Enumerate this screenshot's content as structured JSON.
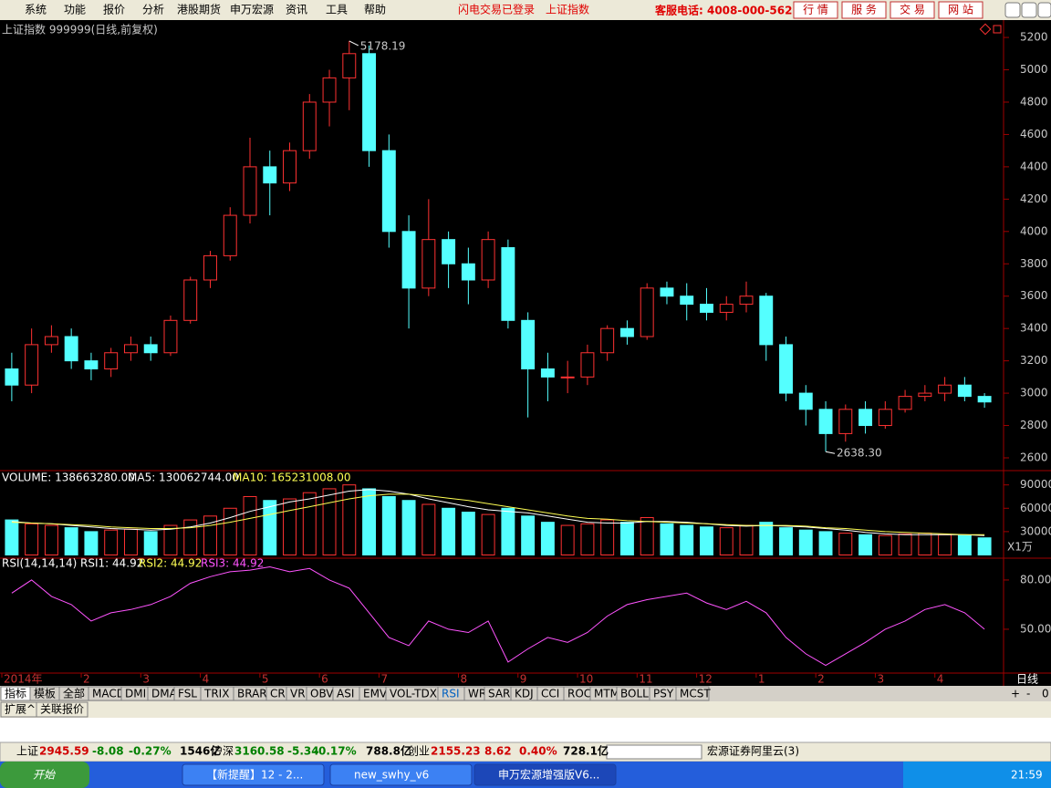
{
  "menu": {
    "items": [
      "系统",
      "功能",
      "报价",
      "分析",
      "港股期货",
      "申万宏源",
      "资讯",
      "工具",
      "帮助"
    ],
    "login_status": "闪电交易已登录",
    "index_name": "上证指数",
    "hotline": "客服电话: 4008-000-562",
    "buttons": [
      "行 情",
      "服 务",
      "交 易",
      "网 站"
    ]
  },
  "chart_data": [
    {
      "type": "candlestick",
      "title": "上证指数 999999(日线,前复权)",
      "high_label": "5178.19",
      "low_label": "2638.30",
      "categories": [
        "2014年",
        null,
        null,
        null,
        "2",
        null,
        null,
        "3",
        null,
        null,
        "4",
        null,
        null,
        "5",
        null,
        null,
        "6",
        null,
        null,
        "7",
        null,
        null,
        null,
        "8",
        null,
        null,
        "9",
        null,
        null,
        "10",
        null,
        null,
        "11",
        null,
        null,
        "12",
        null,
        null,
        "1",
        null,
        null,
        "2",
        null,
        null,
        "3",
        null,
        null,
        "4",
        null,
        null
      ],
      "open": [
        3150,
        3050,
        3300,
        3350,
        3200,
        3150,
        3250,
        3300,
        3250,
        3450,
        3700,
        3850,
        4100,
        4400,
        4300,
        4500,
        4800,
        4950,
        5100,
        4500,
        4000,
        3650,
        3950,
        3800,
        3700,
        3900,
        3450,
        3150,
        3100,
        3100,
        3250,
        3400,
        3350,
        3650,
        3600,
        3550,
        3500,
        3550,
        3600,
        3300,
        3000,
        2900,
        2750,
        2900,
        2800,
        2900,
        2980,
        3000,
        3050,
        2980
      ],
      "high": [
        3250,
        3400,
        3420,
        3400,
        3250,
        3280,
        3350,
        3350,
        3480,
        3720,
        3880,
        4150,
        4580,
        4500,
        4550,
        4850,
        5000,
        5178.19,
        5150,
        4600,
        4100,
        4200,
        4000,
        3900,
        4000,
        3950,
        3500,
        3250,
        3200,
        3300,
        3420,
        3450,
        3680,
        3690,
        3680,
        3650,
        3600,
        3690,
        3620,
        3350,
        3050,
        2950,
        2930,
        2950,
        2950,
        3020,
        3050,
        3100,
        3100,
        3000
      ],
      "low": [
        2950,
        3000,
        3250,
        3150,
        3080,
        3100,
        3200,
        3200,
        3230,
        3430,
        3650,
        3820,
        4050,
        4100,
        4250,
        4450,
        4650,
        4750,
        4400,
        3900,
        3400,
        3600,
        3650,
        3550,
        3650,
        3400,
        2850,
        2950,
        3000,
        3050,
        3200,
        3300,
        3330,
        3550,
        3450,
        3450,
        3450,
        3500,
        3200,
        2950,
        2800,
        2638.3,
        2700,
        2750,
        2780,
        2880,
        2950,
        2950,
        2950,
        2910
      ],
      "close": [
        3050,
        3300,
        3350,
        3200,
        3150,
        3250,
        3300,
        3250,
        3450,
        3700,
        3850,
        4100,
        4400,
        4300,
        4500,
        4800,
        4950,
        5100,
        4500,
        4000,
        3650,
        3950,
        3800,
        3700,
        3950,
        3450,
        3150,
        3100,
        3100,
        3250,
        3400,
        3350,
        3650,
        3600,
        3550,
        3500,
        3550,
        3600,
        3300,
        3000,
        2900,
        2750,
        2900,
        2800,
        2900,
        2980,
        3000,
        3050,
        2980,
        2945.59
      ],
      "up_color": "#ff3232",
      "down_color": "#54ffff",
      "ylim": [
        2521,
        5285
      ],
      "yticks": [
        2600,
        2800,
        3000,
        3200,
        3400,
        3600,
        3800,
        4000,
        4200,
        4400,
        4600,
        4800,
        5000,
        5200
      ],
      "grid": false
    },
    {
      "type": "bar",
      "title": "VOLUME: 138663280.00",
      "unit": "X1万",
      "values": [
        45000,
        40000,
        38000,
        35000,
        30000,
        32000,
        33000,
        30000,
        38000,
        45000,
        50000,
        60000,
        75000,
        70000,
        72000,
        80000,
        85000,
        90000,
        85000,
        75000,
        70000,
        65000,
        60000,
        55000,
        52000,
        60000,
        50000,
        42000,
        38000,
        40000,
        45000,
        42000,
        48000,
        40000,
        38000,
        36000,
        35000,
        38000,
        42000,
        35000,
        32000,
        30000,
        28000,
        26000,
        25000,
        27000,
        28000,
        26000,
        25000,
        22000
      ],
      "series": [
        {
          "name": "MA5: 130062744.00",
          "color": "#ffffff",
          "values": [
            43000,
            41000,
            40000,
            38000,
            36000,
            34000,
            33000,
            32000,
            33000,
            36000,
            41000,
            48000,
            56000,
            62000,
            68000,
            72000,
            77000,
            82000,
            84000,
            82000,
            78000,
            72000,
            67000,
            62000,
            58000,
            56000,
            54000,
            50000,
            46000,
            42000,
            41000,
            41000,
            43000,
            43000,
            42000,
            40000,
            38000,
            37000,
            38000,
            37000,
            36000,
            34000,
            32000,
            29000,
            27000,
            26000,
            26000,
            26000,
            26000,
            25000
          ]
        },
        {
          "name": "MA10: 165231008.00",
          "color": "#ffff54",
          "values": [
            42000,
            41000,
            40000,
            39000,
            38000,
            36000,
            35000,
            34000,
            34000,
            35000,
            38000,
            42000,
            47000,
            52000,
            57000,
            62000,
            67000,
            72000,
            76000,
            78000,
            78000,
            76000,
            73000,
            70000,
            66000,
            62000,
            58000,
            54000,
            50000,
            47000,
            46000,
            44000,
            43000,
            42000,
            41000,
            40000,
            39000,
            38000,
            38000,
            38000,
            37000,
            35000,
            34000,
            32000,
            30000,
            29000,
            28000,
            27000,
            26000,
            26000
          ]
        }
      ],
      "ylim": [
        0,
        106000
      ],
      "yticks": [
        30000,
        60000,
        90000
      ]
    },
    {
      "type": "line",
      "title": "RSI(14,14,14)",
      "series": [
        {
          "name": "RSI1: 44.92",
          "color": "#ffffff"
        },
        {
          "name": "RSI2: 44.92",
          "color": "#ffff54"
        },
        {
          "name": "RSI3: 44.92",
          "color": "#ff54ff",
          "values": [
            72,
            80,
            70,
            65,
            55,
            60,
            62,
            65,
            70,
            78,
            82,
            85,
            86,
            88,
            85,
            87,
            80,
            75,
            60,
            45,
            40,
            55,
            50,
            48,
            55,
            30,
            38,
            45,
            42,
            48,
            58,
            65,
            68,
            70,
            72,
            66,
            62,
            67,
            60,
            45,
            35,
            28,
            35,
            42,
            50,
            55,
            62,
            65,
            60,
            50
          ]
        }
      ],
      "ylim": [
        23.3,
        93.3
      ],
      "yticks": [
        {
          "value": 50,
          "label": "50.00"
        },
        {
          "value": 80,
          "label": "80.00"
        }
      ]
    }
  ],
  "period": "日线",
  "zoom": [
    "+",
    "-",
    "0"
  ],
  "tabs": {
    "row1": [
      "指标",
      "模板",
      "全部",
      "MACD",
      "DMI",
      "DMA",
      "FSL",
      "TRIX",
      "BRAR",
      "CR",
      "VR",
      "OBV",
      "ASI",
      "EMV",
      "VOL-TDX",
      "RSI",
      "WR",
      "SAR",
      "KDJ",
      "CCI",
      "ROC",
      "MTM",
      "BOLL",
      "PSY",
      "MCST"
    ],
    "row2": [
      "扩展^",
      "关联报价"
    ]
  },
  "status": [
    {
      "text": "上证",
      "color": "#000000"
    },
    {
      "text": "2945.59",
      "color": "#d00000"
    },
    {
      "text": "-8.08",
      "color": "#008000"
    },
    {
      "text": "-0.27%",
      "color": "#008000"
    },
    {
      "text": "1546亿",
      "color": "#000000"
    },
    {
      "text": "沪深",
      "color": "#000000"
    },
    {
      "text": "3160.58",
      "color": "#008000"
    },
    {
      "text": "-5.34",
      "color": "#008000"
    },
    {
      "text": "-0.17%",
      "color": "#008000"
    },
    {
      "text": "788.8亿",
      "color": "#000000"
    },
    {
      "text": "创业",
      "color": "#000000"
    },
    {
      "text": "2155.23",
      "color": "#d00000"
    },
    {
      "text": "8.62",
      "color": "#d00000"
    },
    {
      "text": "0.40%",
      "color": "#d00000"
    },
    {
      "text": "728.1亿",
      "color": "#000000"
    },
    {
      "text": "宏源证券阿里云(3)",
      "color": "#000000"
    }
  ],
  "taskbar": {
    "start": "开始",
    "tasks": [
      "【新提醒】12 - 2...",
      "new_swhy_v6",
      "申万宏源增强版V6..."
    ],
    "clock": "21:59"
  }
}
